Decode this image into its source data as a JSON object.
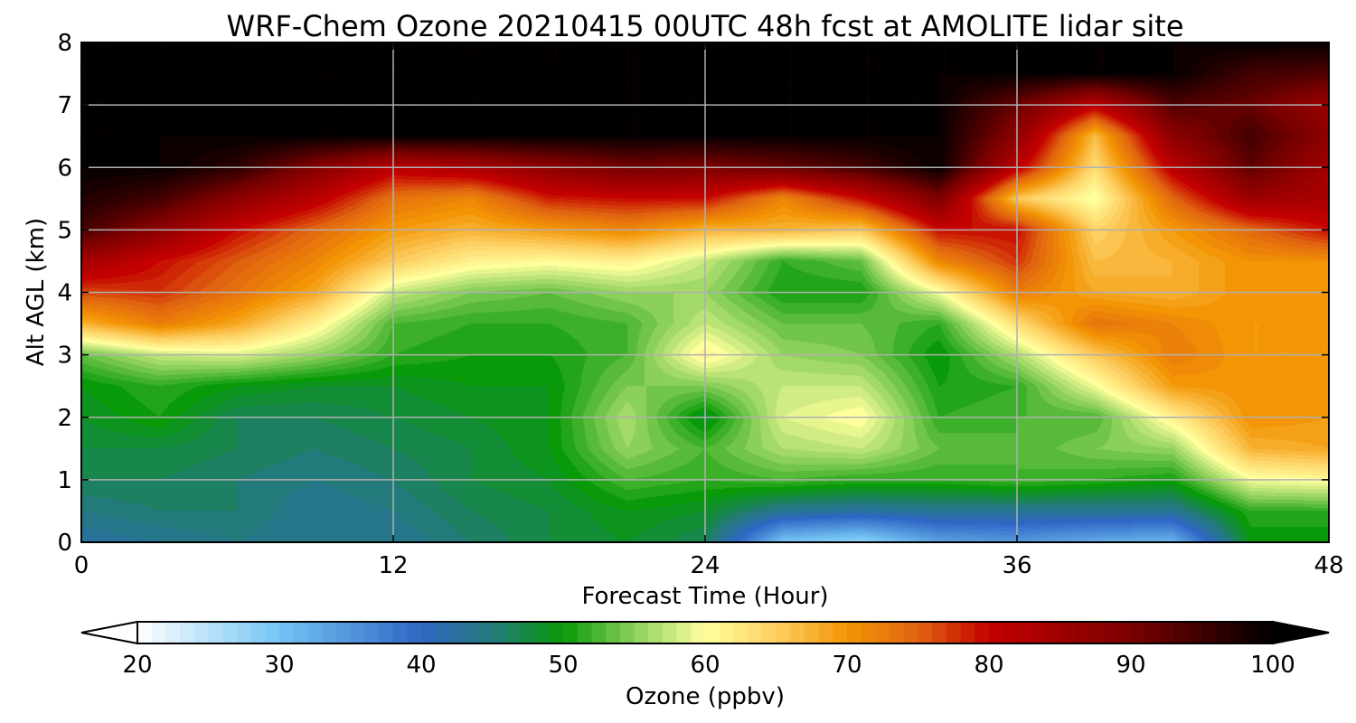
{
  "chart_data": {
    "type": "heatmap",
    "title": "WRF-Chem Ozone  20210415 00UTC 48h fcst at AMOLITE lidar site",
    "xlabel": "Forecast Time (Hour)",
    "ylabel": "Alt AGL (km)",
    "xlim": [
      0,
      48
    ],
    "ylim": [
      0,
      8
    ],
    "x_ticks": [
      "0",
      "12",
      "24",
      "36",
      "48"
    ],
    "y_ticks": [
      "0",
      "1",
      "2",
      "3",
      "4",
      "5",
      "6",
      "7",
      "8"
    ],
    "grid": true,
    "colorbar": {
      "label": "Ozone  (ppbv)",
      "range": [
        20,
        100
      ],
      "extend": "both",
      "ticks": [
        "20",
        "30",
        "40",
        "50",
        "60",
        "70",
        "80",
        "90",
        "100"
      ],
      "stops": [
        {
          "v": 20,
          "c": "#ffffff"
        },
        {
          "v": 30,
          "c": "#74c4f4"
        },
        {
          "v": 40,
          "c": "#2e66c4"
        },
        {
          "v": 45,
          "c": "#237a7a"
        },
        {
          "v": 50,
          "c": "#089a08"
        },
        {
          "v": 55,
          "c": "#8bd05a"
        },
        {
          "v": 60,
          "c": "#ffff9e"
        },
        {
          "v": 65,
          "c": "#fdcf62"
        },
        {
          "v": 70,
          "c": "#f39505"
        },
        {
          "v": 75,
          "c": "#e06410"
        },
        {
          "v": 80,
          "c": "#c40000"
        },
        {
          "v": 90,
          "c": "#7a0000"
        },
        {
          "v": 100,
          "c": "#000000"
        }
      ]
    },
    "field": {
      "x": [
        0,
        3,
        6,
        9,
        12,
        15,
        18,
        21,
        24,
        27,
        30,
        33,
        36,
        39,
        42,
        45,
        48
      ],
      "y": [
        0,
        0.5,
        1,
        1.5,
        2,
        2.5,
        3,
        3.5,
        4,
        4.5,
        5,
        5.5,
        6,
        6.5,
        7,
        7.5,
        8
      ],
      "z": [
        [
          43,
          44,
          45,
          44,
          44,
          46,
          48,
          49,
          47,
          30,
          28,
          34,
          35,
          33,
          32,
          50,
          50
        ],
        [
          45,
          46,
          46,
          44,
          45,
          47,
          48,
          50,
          49,
          44,
          43,
          44,
          44,
          44,
          44,
          52,
          52
        ],
        [
          47,
          47,
          46,
          45,
          46,
          48,
          49,
          53,
          52,
          53,
          52,
          52,
          53,
          52,
          51,
          60,
          61
        ],
        [
          48,
          48,
          47,
          46,
          47,
          48,
          50,
          56,
          53,
          57,
          58,
          54,
          53,
          55,
          56,
          68,
          69
        ],
        [
          49,
          51,
          47,
          47,
          48,
          49,
          50,
          57,
          49,
          59,
          61,
          52,
          53,
          53,
          62,
          71,
          70
        ],
        [
          50,
          52,
          50,
          49,
          49,
          50,
          50,
          55,
          55,
          58,
          58,
          51,
          52,
          60,
          70,
          71,
          71
        ],
        [
          54,
          58,
          59,
          56,
          52,
          51,
          51,
          53,
          62,
          56,
          55,
          50,
          57,
          66,
          73,
          70,
          70
        ],
        [
          68,
          73,
          69,
          62,
          53,
          52,
          52,
          53,
          58,
          54,
          54,
          52,
          64,
          74,
          72,
          70,
          70
        ],
        [
          77,
          78,
          74,
          69,
          58,
          55,
          54,
          56,
          56,
          51,
          51,
          60,
          73,
          69,
          68,
          71,
          70
        ],
        [
          85,
          80,
          76,
          72,
          66,
          62,
          61,
          62,
          58,
          52,
          54,
          72,
          78,
          67,
          68,
          71,
          71
        ],
        [
          95,
          88,
          80,
          75,
          70,
          68,
          70,
          72,
          68,
          68,
          66,
          80,
          80,
          65,
          70,
          75,
          80
        ],
        [
          98,
          95,
          88,
          82,
          74,
          72,
          79,
          80,
          80,
          72,
          80,
          90,
          66,
          60,
          75,
          86,
          84
        ],
        [
          100,
          100,
          97,
          89,
          82,
          84,
          88,
          91,
          90,
          92,
          95,
          100,
          82,
          64,
          82,
          93,
          85
        ],
        [
          100,
          100,
          100,
          100,
          100,
          100,
          100,
          100,
          100,
          100,
          100,
          100,
          88,
          67,
          88,
          95,
          88
        ],
        [
          100,
          100,
          100,
          100,
          100,
          100,
          100,
          100,
          100,
          100,
          100,
          100,
          92,
          82,
          94,
          92,
          86
        ],
        [
          100,
          100,
          100,
          100,
          100,
          100,
          100,
          100,
          100,
          100,
          100,
          100,
          100,
          100,
          100,
          95,
          94
        ],
        [
          100,
          100,
          100,
          100,
          100,
          100,
          100,
          100,
          100,
          100,
          100,
          100,
          100,
          100,
          100,
          100,
          100
        ]
      ]
    }
  }
}
